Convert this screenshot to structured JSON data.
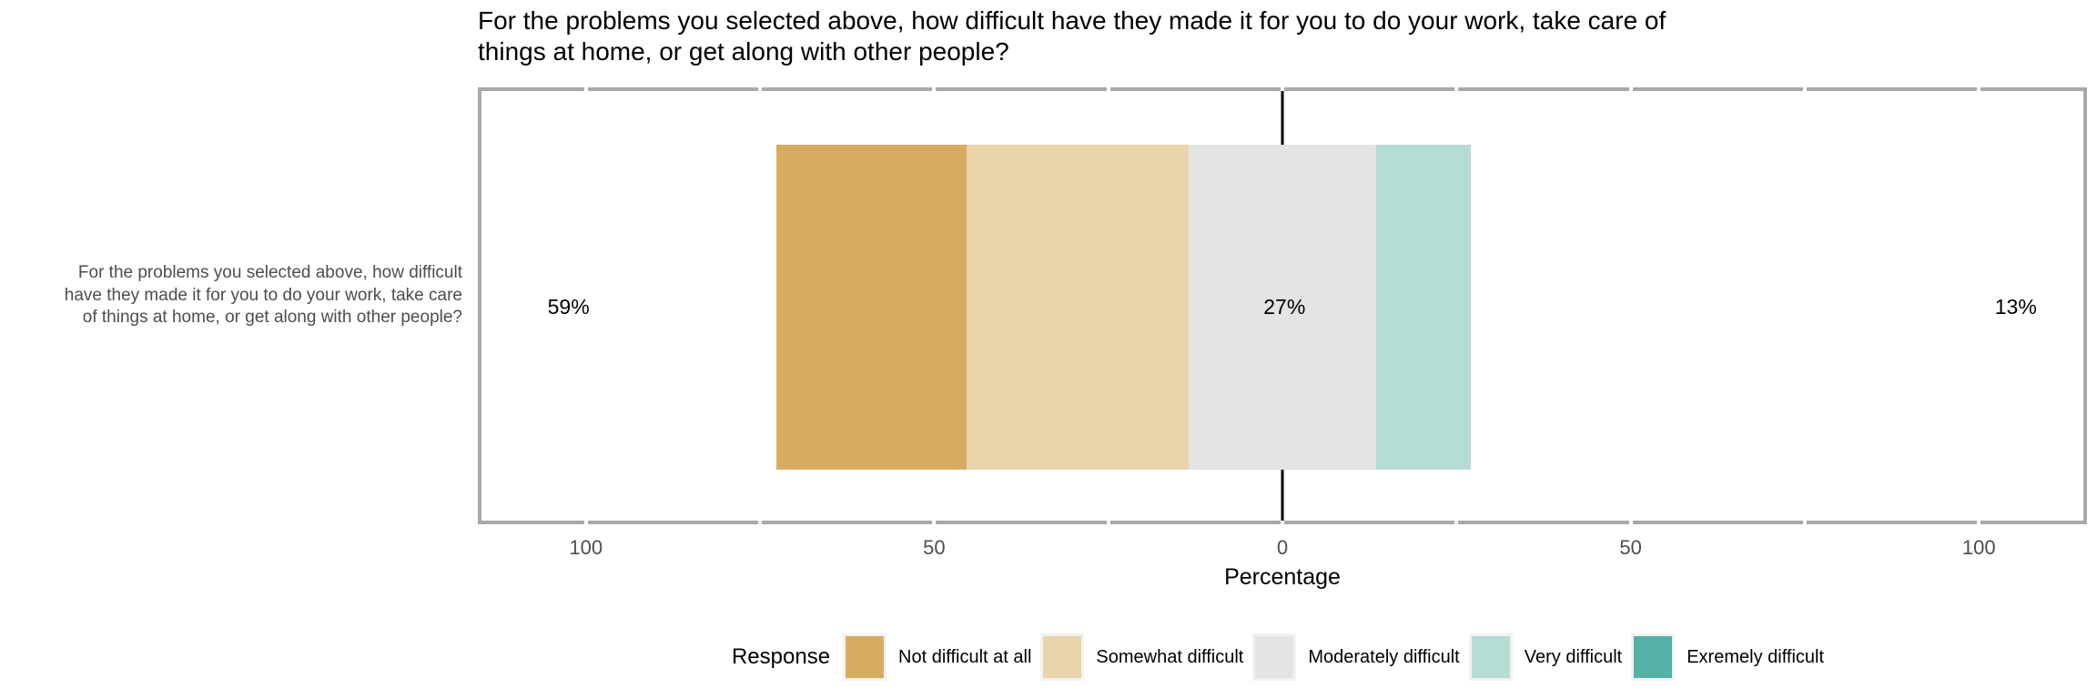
{
  "title": "For the problems you selected above, how difficult have they made it for you to do your work, take care of things at home, or get along with other people?",
  "y_axis_label": "For the problems you selected above, how difficult have they made it for you to do your work, take care of things at home, or get along with other people?",
  "chart_data": {
    "type": "bar",
    "subtype": "diverging-stacked-likert",
    "orientation": "horizontal",
    "title": "For the problems you selected above, how difficult have they made it for you to do your work, take care of things at home, or get along with other people?",
    "xlabel": "Percentage",
    "ylabel": "",
    "xlim": [
      -115,
      115
    ],
    "x_major_ticks": [
      -100,
      -50,
      0,
      50,
      100
    ],
    "x_major_tick_labels": [
      "100",
      "50",
      "0",
      "50",
      "100"
    ],
    "x_minor_ticks": [
      -100,
      -75,
      -50,
      -25,
      0,
      25,
      50,
      75,
      100
    ],
    "grid": false,
    "zero_reference_line": true,
    "legend_position": "bottom",
    "legend_title": "Response",
    "series": [
      {
        "name": "Not difficult at all",
        "value": 27.4,
        "from": -72.7,
        "to": -45.3,
        "color": "#d6ad60"
      },
      {
        "name": "Somewhat difficult",
        "value": 31.8,
        "from": -45.3,
        "to": -13.5,
        "color": "#e8d5ab"
      },
      {
        "name": "Moderately difficult",
        "value": 27.0,
        "from": -13.5,
        "to": 13.5,
        "color": "#e4e4e4"
      },
      {
        "name": "Very difficult",
        "value": 13.5,
        "from": 13.5,
        "to": 27.0,
        "color": "#b5dcd5"
      },
      {
        "name": "Exremely difficult",
        "value": 0.0,
        "from": 27.0,
        "to": 27.0,
        "color": "#56b1a9"
      }
    ],
    "annotations": [
      {
        "text": "59%",
        "x": -102.5
      },
      {
        "text": "27%",
        "x": 0.3
      },
      {
        "text": "13%",
        "x": 105.3
      }
    ],
    "colors": {
      "panel_border": "#a8a8a8",
      "axis_text": "#4d4d4d",
      "zero_line": "#000000"
    }
  }
}
